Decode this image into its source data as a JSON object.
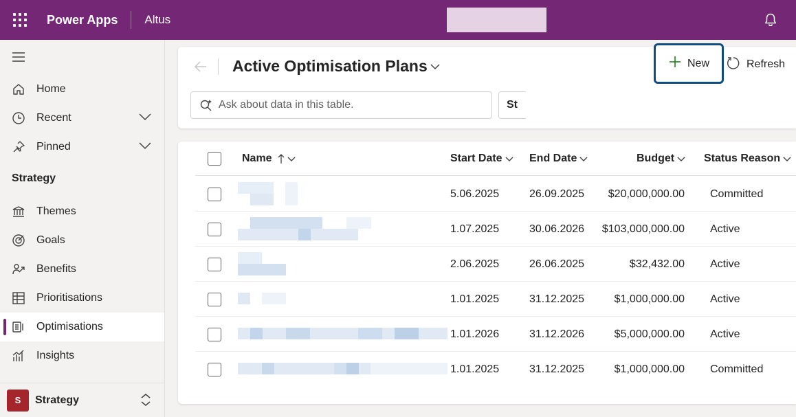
{
  "topbar": {
    "app_name": "Power Apps",
    "environment": "Altus",
    "icons": {
      "waffle": "app-launcher-icon",
      "bell": "bell-icon"
    },
    "color": "#742774"
  },
  "sidebar": {
    "items": [
      {
        "label": "Home",
        "icon": "home-icon"
      },
      {
        "label": "Recent",
        "icon": "clock-icon",
        "expandable": true
      },
      {
        "label": "Pinned",
        "icon": "pin-icon",
        "expandable": true
      }
    ],
    "section_title": "Strategy",
    "section_items": [
      {
        "label": "Themes",
        "icon": "bank-icon"
      },
      {
        "label": "Goals",
        "icon": "target-icon"
      },
      {
        "label": "Benefits",
        "icon": "benefits-icon"
      },
      {
        "label": "Prioritisations",
        "icon": "table-icon"
      },
      {
        "label": "Optimisations",
        "icon": "list-icon",
        "active": true
      },
      {
        "label": "Insights",
        "icon": "chart-icon"
      }
    ],
    "area": {
      "avatar": "S",
      "name": "Strategy",
      "avatar_color": "#a4262c"
    }
  },
  "header": {
    "view_title": "Active Optimisation Plans",
    "new_label": "New",
    "refresh_label": "Refresh",
    "ask_placeholder": "Ask about data in this table.",
    "filter_chip": "St"
  },
  "grid": {
    "columns": [
      "Name",
      "Start Date",
      "End Date",
      "Budget",
      "Status Reason"
    ],
    "rows": [
      {
        "start": "5.06.2025",
        "end": "26.09.2025",
        "budget": "$20,000,000.00",
        "status": "Committed"
      },
      {
        "start": "1.07.2025",
        "end": "30.06.2026",
        "budget": "$103,000,000.00",
        "status": "Active"
      },
      {
        "start": "2.06.2025",
        "end": "26.06.2025",
        "budget": "$32,432.00",
        "status": "Active"
      },
      {
        "start": "1.01.2025",
        "end": "31.12.2025",
        "budget": "$1,000,000.00",
        "status": "Active"
      },
      {
        "start": "1.01.2026",
        "end": "31.12.2026",
        "budget": "$5,000,000.00",
        "status": "Active"
      },
      {
        "start": "1.01.2025",
        "end": "31.12.2025",
        "budget": "$1,000,000.00",
        "status": "Committed"
      }
    ]
  }
}
